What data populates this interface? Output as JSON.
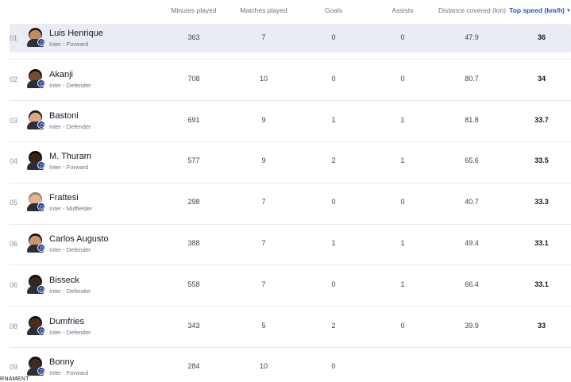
{
  "columns": {
    "minutes": "Minutes played",
    "matches": "Matches played",
    "goals": "Goals",
    "assists": "Assists",
    "distance": "Distance covered (km)",
    "speed": "Top speed (km/h)"
  },
  "sort_caret": "▼",
  "players": [
    {
      "rank": "01",
      "name": "Luis Henrique",
      "team": "Inter - Forward",
      "minutes": "363",
      "matches": "7",
      "goals": "0",
      "assists": "0",
      "distance": "47.9",
      "speed": "36"
    },
    {
      "rank": "02",
      "name": "Akanji",
      "team": "Inter - Defender",
      "minutes": "708",
      "matches": "10",
      "goals": "0",
      "assists": "0",
      "distance": "80.7",
      "speed": "34"
    },
    {
      "rank": "03",
      "name": "Bastoni",
      "team": "Inter - Defender",
      "minutes": "691",
      "matches": "9",
      "goals": "1",
      "assists": "1",
      "distance": "81.8",
      "speed": "33.7"
    },
    {
      "rank": "04",
      "name": "M. Thuram",
      "team": "Inter - Forward",
      "minutes": "577",
      "matches": "9",
      "goals": "2",
      "assists": "1",
      "distance": "65.6",
      "speed": "33.5"
    },
    {
      "rank": "05",
      "name": "Frattesi",
      "team": "Inter - Midfielder",
      "minutes": "298",
      "matches": "7",
      "goals": "0",
      "assists": "0",
      "distance": "40.7",
      "speed": "33.3"
    },
    {
      "rank": "06",
      "name": "Carlos Augusto",
      "team": "Inter - Defender",
      "minutes": "388",
      "matches": "7",
      "goals": "1",
      "assists": "1",
      "distance": "49.4",
      "speed": "33.1"
    },
    {
      "rank": "06",
      "name": "Bisseck",
      "team": "Inter - Defender",
      "minutes": "558",
      "matches": "7",
      "goals": "0",
      "assists": "1",
      "distance": "66.4",
      "speed": "33.1"
    },
    {
      "rank": "08",
      "name": "Dumfries",
      "team": "Inter - Defender",
      "minutes": "343",
      "matches": "5",
      "goals": "2",
      "assists": "0",
      "distance": "39.9",
      "speed": "33"
    },
    {
      "rank": "09",
      "name": "Bonny",
      "team": "Inter - Forward",
      "minutes": "284",
      "matches": "10",
      "goals": "0",
      "assists": "",
      "distance": "",
      "speed": ""
    }
  ],
  "footer_partial": "RNAMENT",
  "colors": {
    "accent": "#1f4fd6",
    "highlight_row": "#e9ecf5",
    "badge": "#1e3b8a"
  }
}
